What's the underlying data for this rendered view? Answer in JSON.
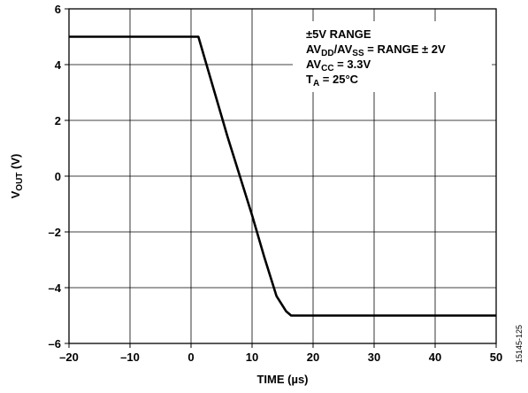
{
  "chart_data": {
    "type": "line",
    "xlabel": "TIME (µs)",
    "ylabel": {
      "main": "V",
      "sub": "OUT",
      "unit": " (V)"
    },
    "xlim": [
      -20,
      50
    ],
    "ylim": [
      -6,
      6
    ],
    "x_ticks": [
      -20,
      -10,
      0,
      10,
      20,
      30,
      40,
      50
    ],
    "y_ticks": [
      6,
      4,
      2,
      0,
      -2,
      -4,
      -6
    ],
    "x_tick_labels": [
      "–20",
      "–10",
      "0",
      "10",
      "20",
      "30",
      "40",
      "50"
    ],
    "y_tick_labels": [
      "6",
      "4",
      "2",
      "0",
      "–2",
      "–4",
      "–6"
    ],
    "grid": true,
    "series": [
      {
        "x": [
          -20,
          1.2,
          2,
          4,
          6,
          8,
          10,
          12,
          14,
          15.6,
          16.4,
          17,
          50
        ],
        "y": [
          5,
          5,
          4.4,
          2.9,
          1.4,
          0,
          -1.4,
          -2.9,
          -4.3,
          -4.85,
          -5,
          -5,
          -5
        ]
      }
    ],
    "annotations": [
      [
        {
          "t": "±5V RANGE"
        }
      ],
      [
        {
          "t": "AV"
        },
        {
          "t": "DD",
          "sub": true
        },
        {
          "t": "/AV"
        },
        {
          "t": "SS",
          "sub": true
        },
        {
          "t": " = RANGE ± 2V"
        }
      ],
      [
        {
          "t": "AV"
        },
        {
          "t": "CC",
          "sub": true
        },
        {
          "t": " = 3.3V"
        }
      ],
      [
        {
          "t": "T"
        },
        {
          "t": "A",
          "sub": true
        },
        {
          "t": " = 25°C"
        }
      ]
    ],
    "figure_id": "15145-125"
  }
}
